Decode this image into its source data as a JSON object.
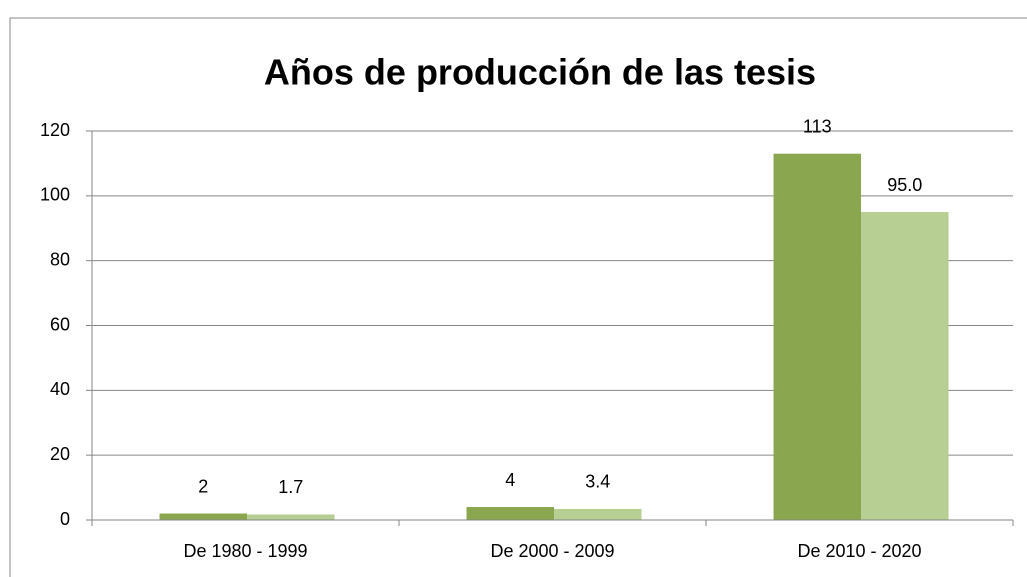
{
  "chart_data": {
    "type": "bar",
    "title": "Años de producción de las tesis",
    "categories": [
      "De 1980 - 1999",
      "De 2000 - 2009",
      "De 2010 - 2020"
    ],
    "series": [
      {
        "color": "#8aa64f",
        "values": [
          2,
          4,
          113
        ]
      },
      {
        "color": "#b7cf93",
        "values": [
          1.7,
          3.4,
          95.0
        ],
        "value_labels": [
          "1.7",
          "3.4",
          "95.0"
        ]
      }
    ],
    "ylim": [
      0,
      120
    ],
    "yticks": [
      0,
      20,
      40,
      60,
      80,
      100,
      120
    ],
    "grid": true
  }
}
